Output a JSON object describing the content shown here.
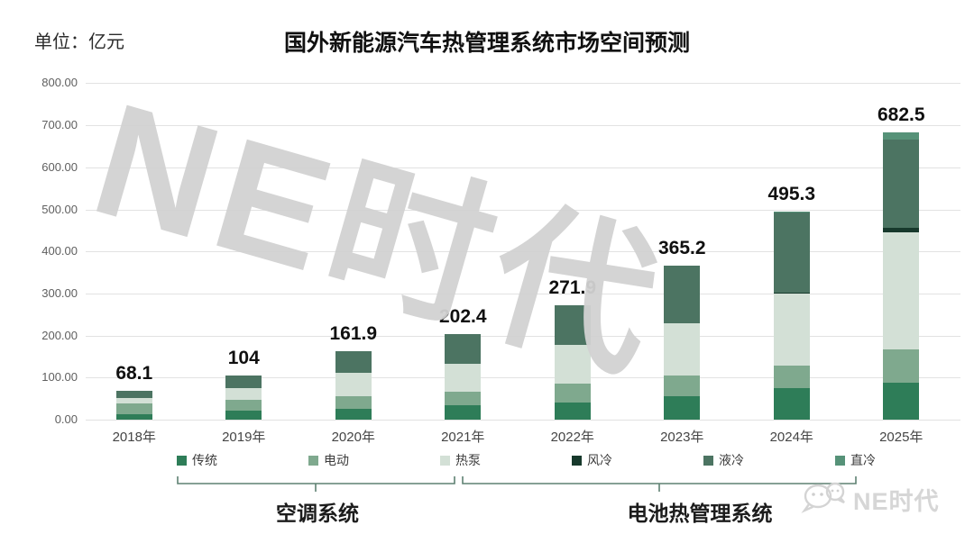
{
  "header": {
    "unit_label": "单位：亿元"
  },
  "chart_data": {
    "type": "bar",
    "stacked": true,
    "title": "国外新能源汽车热管理系统市场空间预测",
    "unit": "亿元",
    "categories": [
      "2018年",
      "2019年",
      "2020年",
      "2021年",
      "2022年",
      "2023年",
      "2024年",
      "2025年"
    ],
    "series": [
      {
        "name": "传统",
        "color": "#2E7D58",
        "values": [
          12,
          21,
          26,
          34,
          41,
          56,
          74,
          88
        ]
      },
      {
        "name": "电动",
        "color": "#7FA98E",
        "values": [
          26,
          26,
          29,
          33,
          45,
          48,
          55,
          78
        ]
      },
      {
        "name": "热泵",
        "color": "#D3E0D6",
        "values": [
          14,
          27,
          56,
          66,
          91,
          125,
          170,
          280
        ]
      },
      {
        "name": "风冷",
        "color": "#17392C",
        "values": [
          0,
          0,
          0,
          0,
          0,
          0,
          3,
          10
        ]
      },
      {
        "name": "液冷",
        "color": "#4C7462",
        "values": [
          16.1,
          30,
          50.9,
          69.4,
          94.9,
          136.2,
          190,
          209
        ]
      },
      {
        "name": "直冷",
        "color": "#569278",
        "values": [
          0,
          0,
          0,
          0,
          0,
          0,
          3.3,
          17.5
        ]
      }
    ],
    "totals": [
      68.1,
      104,
      161.9,
      202.4,
      271.9,
      365.2,
      495.3,
      682.5
    ],
    "total_labels": [
      "68.1",
      "104",
      "161.9",
      "202.4",
      "271.9",
      "365.2",
      "495.3",
      "682.5"
    ],
    "ylim": [
      0,
      800
    ],
    "ytick_labels": [
      "0.00",
      "100.00",
      "200.00",
      "300.00",
      "400.00",
      "500.00",
      "600.00",
      "700.00",
      "800.00"
    ],
    "xlabel": "",
    "ylabel": "单位：亿元",
    "grid": true,
    "legend_position": "bottom"
  },
  "groups": [
    {
      "label": "空调系统",
      "members": [
        "传统",
        "电动",
        "热泵"
      ]
    },
    {
      "label": "电池热管理系统",
      "members": [
        "风冷",
        "液冷",
        "直冷"
      ]
    }
  ],
  "watermark": {
    "text": "NE时代",
    "color": "#d2d2d2"
  },
  "logo": {
    "text": "NE时代"
  }
}
